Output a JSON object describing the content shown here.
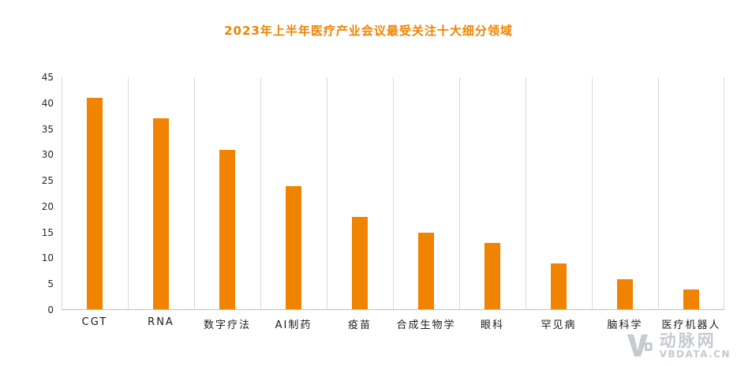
{
  "colors": {
    "accent": "#F08300",
    "bar": "#F08300",
    "grid": "#D9D9D9",
    "axis": "#BFBFBF",
    "tick_text": "#262626",
    "category_text": "#1A1A1A",
    "watermark": "#C6CBD0"
  },
  "watermark": {
    "brand": "动脉网",
    "site": "VBDATA.CN",
    "logo": "vb-logo-icon"
  },
  "chart_data": {
    "type": "bar",
    "title": "2023年上半年医疗产业会议最受关注十大细分领域",
    "categories": [
      "CGT",
      "RNA",
      "数字疗法",
      "AI制药",
      "疫苗",
      "合成生物学",
      "眼科",
      "罕见病",
      "脑科学",
      "医疗机器人"
    ],
    "values": [
      41,
      37,
      31,
      24,
      18,
      15,
      13,
      9,
      6,
      4
    ],
    "xlabel": "",
    "ylabel": "",
    "ylim": [
      0,
      45
    ],
    "yticks": [
      0,
      5,
      10,
      15,
      20,
      25,
      30,
      35,
      40,
      45
    ],
    "grid": "vertical-category-separators",
    "legend": "none",
    "bar_color": "#F08300",
    "title_color": "#F08300"
  }
}
